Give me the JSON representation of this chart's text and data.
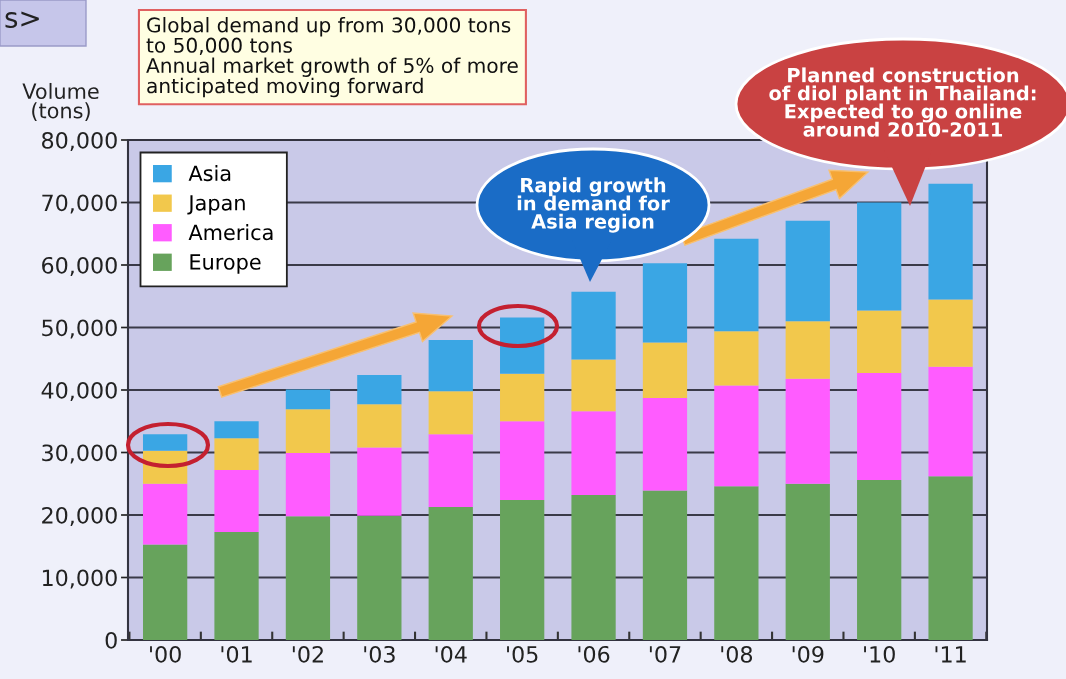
{
  "chart_data": {
    "type": "bar",
    "stacked": true,
    "categories": [
      "'00",
      "'01",
      "'02",
      "'03",
      "'04",
      "'05",
      "'06",
      "'07",
      "'08",
      "'09",
      "'10",
      "'11"
    ],
    "ylabel": "Volume\n(tons)",
    "ylim": [
      0,
      80000
    ],
    "yticks": [
      0,
      {
        "value": 10000,
        "label": "10,000"
      },
      {
        "value": 20000,
        "label": "20,000"
      },
      {
        "value": 30000,
        "label": "30,000"
      },
      {
        "value": 40000,
        "label": "40,000"
      },
      {
        "value": 50000,
        "label": "50,000"
      },
      {
        "value": 60000,
        "label": "60,000"
      },
      {
        "value": 70000,
        "label": "70,000"
      },
      {
        "value": 80000,
        "label": "80,000"
      }
    ],
    "grid": "y",
    "legend": "top left",
    "series": [
      {
        "name": "Europe",
        "color": "#67a35c",
        "values": [
          15300,
          17300,
          19800,
          19900,
          21300,
          22400,
          23200,
          23900,
          24600,
          25000,
          25600,
          26200
        ]
      },
      {
        "name": "America",
        "color": "#ff5cff",
        "values": [
          9700,
          9900,
          10100,
          10900,
          11600,
          12600,
          13400,
          14800,
          16100,
          16800,
          17100,
          17500
        ]
      },
      {
        "name": "Japan",
        "color": "#f2c84c",
        "values": [
          5300,
          5100,
          7000,
          6900,
          6900,
          7600,
          8300,
          8900,
          8700,
          9200,
          10000,
          10800
        ]
      },
      {
        "name": "Asia",
        "color": "#3aa6e4",
        "values": [
          2600,
          2700,
          3200,
          4700,
          8200,
          9000,
          10800,
          12700,
          14800,
          16100,
          17300,
          18500
        ]
      }
    ],
    "annotations": [
      "s>",
      "Global demand up from 30,000 tons\nto 50,000 tons\nAnnual market growth of 5% of more\nanticipated moving forward",
      "Rapid growth\nin demand for\nAsia region",
      "Planned construction\nof diol plant in Thailand:\nExpected to go online\naround 2010-2011"
    ]
  }
}
